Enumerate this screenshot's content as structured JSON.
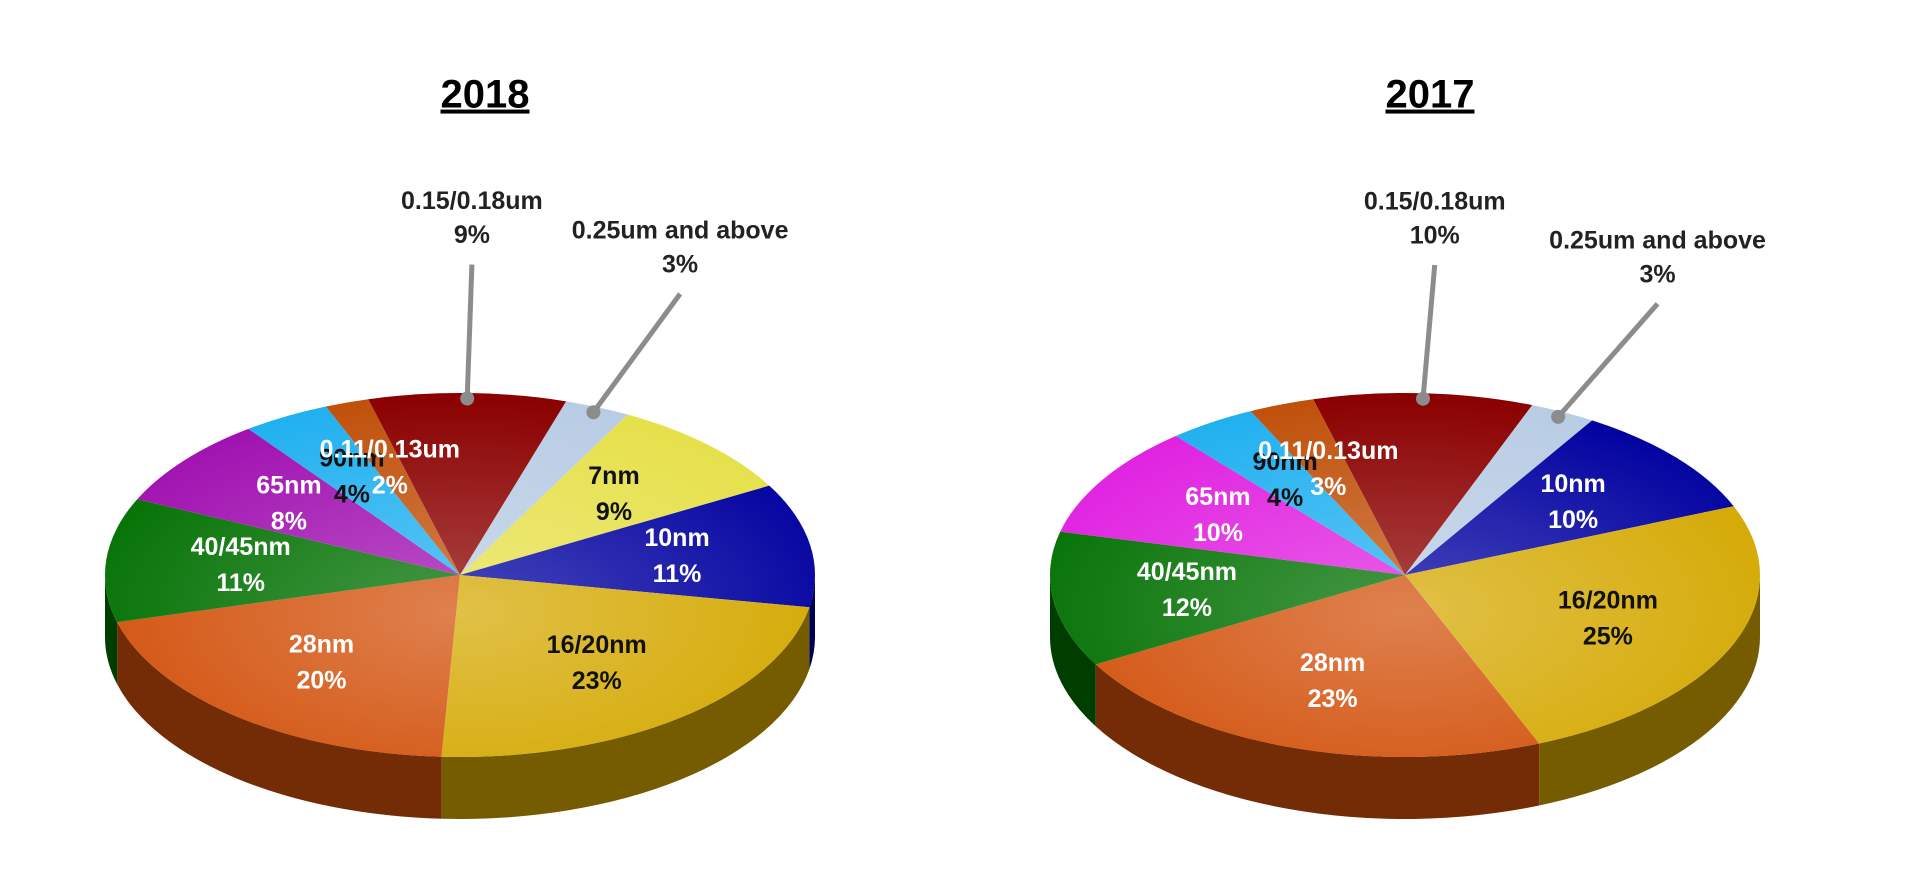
{
  "chart_data": [
    {
      "type": "pie",
      "title": "2018",
      "categories": [
        "0.15/0.18um",
        "0.25um and above",
        "7nm",
        "10nm",
        "16/20nm",
        "28nm",
        "40/45nm",
        "65nm",
        "90nm",
        "0.11/0.13um"
      ],
      "values": [
        9,
        3,
        9,
        11,
        23,
        20,
        11,
        8,
        4,
        2
      ],
      "value_labels": [
        "9%",
        "3%",
        "9%",
        "11%",
        "23%",
        "20%",
        "11%",
        "8%",
        "4%",
        "2%"
      ],
      "colors": [
        "#8b0000",
        "#b8cce4",
        "#e6e04a",
        "#0000a0",
        "#d4a800",
        "#d2500a",
        "#007000",
        "#a010b0",
        "#20b0f0",
        "#c0500a"
      ]
    },
    {
      "type": "pie",
      "title": "2017",
      "categories": [
        "0.15/0.18um",
        "0.25um and above",
        "10nm",
        "16/20nm",
        "28nm",
        "40/45nm",
        "65nm",
        "90nm",
        "0.11/0.13um"
      ],
      "values": [
        10,
        3,
        10,
        25,
        23,
        12,
        10,
        4,
        3
      ],
      "value_labels": [
        "10%",
        "3%",
        "10%",
        "25%",
        "23%",
        "12%",
        "10%",
        "4%",
        "3%"
      ],
      "colors": [
        "#8b0000",
        "#b8cce4",
        "#0000a0",
        "#d4a800",
        "#d2500a",
        "#007000",
        "#e020e0",
        "#20b0f0",
        "#c0500a"
      ]
    }
  ]
}
